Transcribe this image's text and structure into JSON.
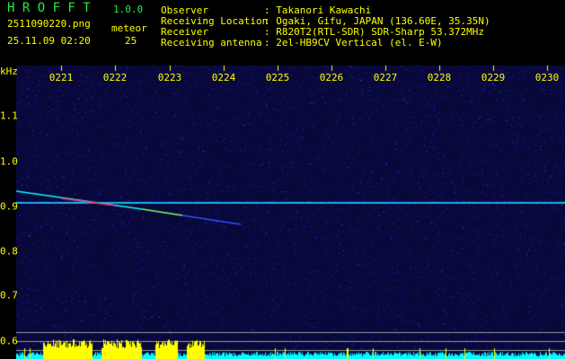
{
  "app": {
    "name": "H R O F F T",
    "version": "1.0.0"
  },
  "file": {
    "name": "2511090220.png",
    "datetime": "25.11.09 02:20"
  },
  "meteor": {
    "label": "meteor",
    "count": "25"
  },
  "info": [
    {
      "label": "Observer",
      "value": ": Takanori Kawachi"
    },
    {
      "label": "Receiving Location",
      "value": ": Ogaki, Gifu, JAPAN (136.60E, 35.35N)"
    },
    {
      "label": "Receiver",
      "value": ": R820T2(RTL-SDR) SDR-Sharp 53.372MHz"
    },
    {
      "label": "Receiving antenna",
      "value": ": 2el-HB9CV Vertical (el. E-W)"
    }
  ],
  "axis": {
    "y_unit": "kHz",
    "y_ticks": [
      "1.1",
      "1.0",
      "0.9",
      "0.8",
      "0.7",
      "0.6"
    ],
    "x_ticks": [
      "0221",
      "0222",
      "0223",
      "0224",
      "0225",
      "0226",
      "0227",
      "0228",
      "0229",
      "0230"
    ]
  },
  "colors": {
    "background": "#000000",
    "text": "#ffff00",
    "title": "#22ee44",
    "noise": "#1a1a8a",
    "signal": "#00ffff",
    "level_high": "#ffff00"
  }
}
